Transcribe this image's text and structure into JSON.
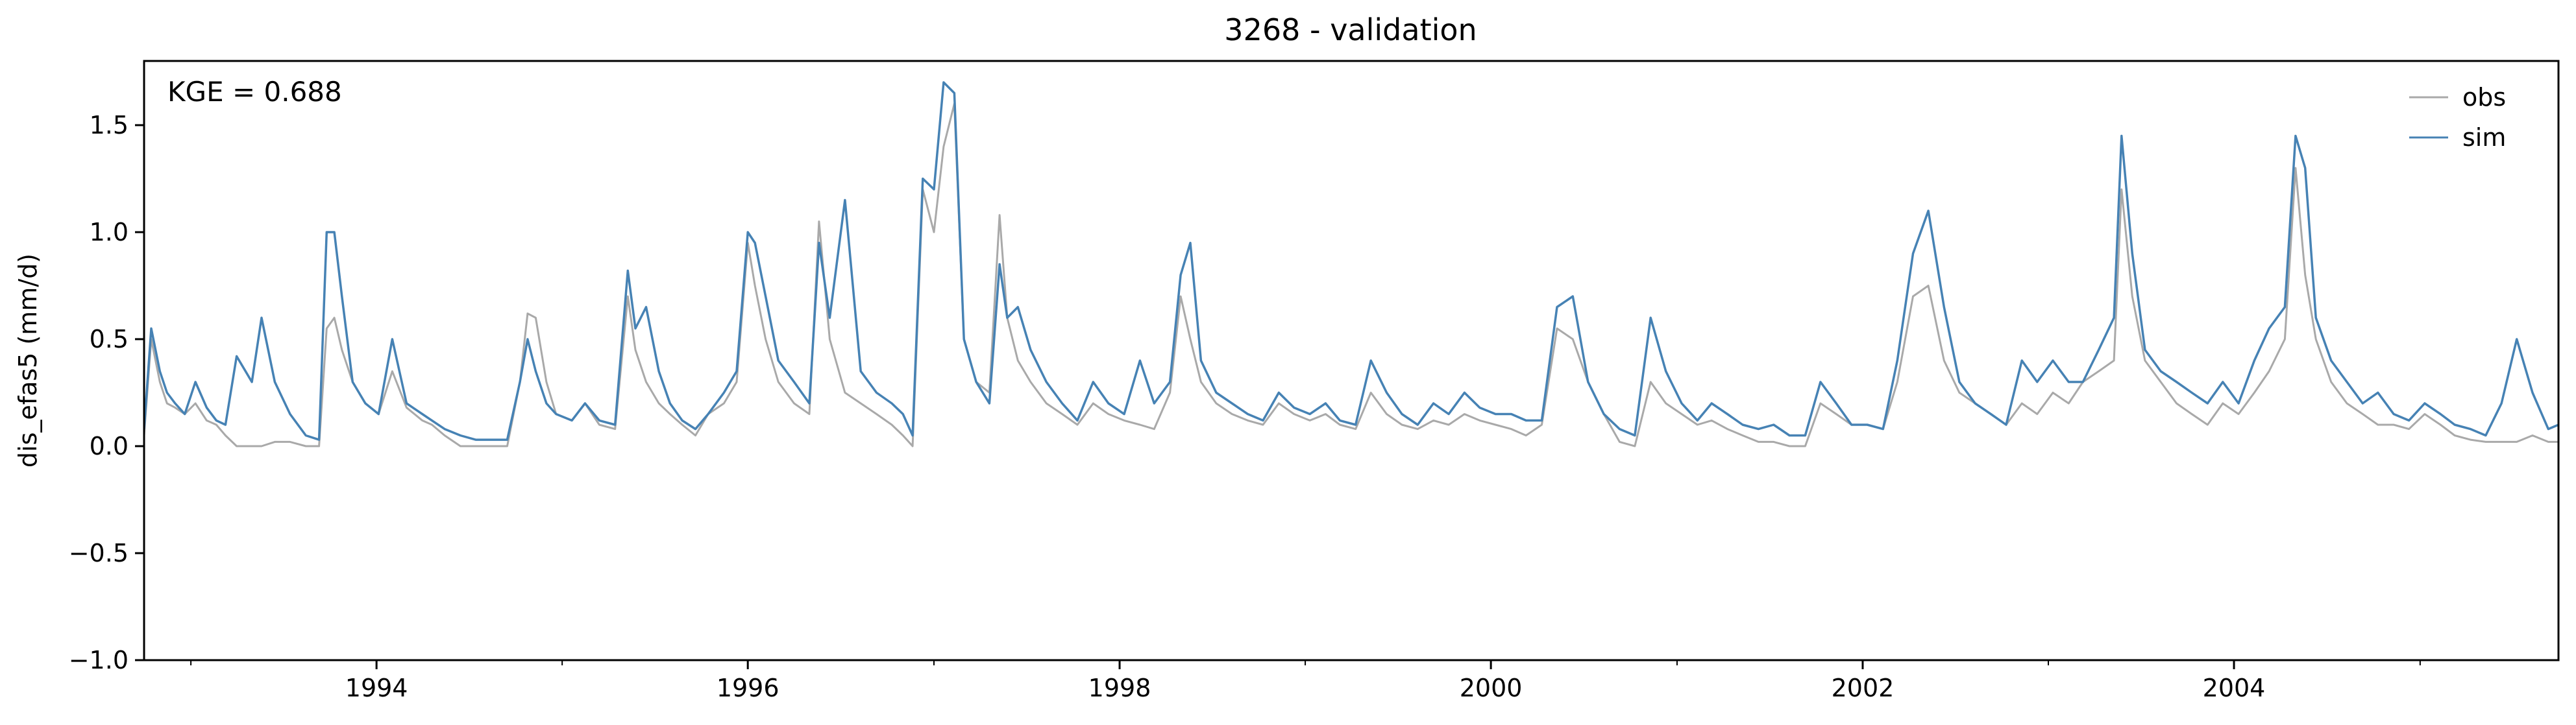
{
  "chart_data": {
    "type": "line",
    "title": "3268 - validation",
    "xlabel": "",
    "ylabel": "dis_efas5 (mm/d)",
    "annotation": "KGE = 0.688",
    "xlim": [
      "1992-10-01",
      "2005-09-30"
    ],
    "ylim": [
      -1.0,
      1.8
    ],
    "y_ticks": [
      -1.0,
      -0.5,
      0.0,
      0.5,
      1.0,
      1.5
    ],
    "y_tick_labels": [
      "−1.0",
      "−0.5",
      "0.0",
      "0.5",
      "1.0",
      "1.5"
    ],
    "x_ticks": [
      "1994-01-01",
      "1996-01-01",
      "1998-01-01",
      "2000-01-01",
      "2002-01-01",
      "2004-01-01"
    ],
    "x_tick_labels": [
      "1994",
      "1996",
      "1998",
      "2000",
      "2002",
      "2004"
    ],
    "x_minor_ticks": [
      "1993-01-01",
      "1995-01-01",
      "1997-01-01",
      "1999-01-01",
      "2001-01-01",
      "2003-01-01",
      "2005-01-01"
    ],
    "grid": false,
    "legend_position": "top-right",
    "series": [
      {
        "name": "obs",
        "color": "#a9a9a9",
        "x": [
          "1992-10-01",
          "1992-10-15",
          "1992-11-01",
          "1992-11-15",
          "1992-12-01",
          "1992-12-20",
          "1993-01-10",
          "1993-02-01",
          "1993-02-20",
          "1993-03-10",
          "1993-04-01",
          "1993-05-01",
          "1993-05-20",
          "1993-06-15",
          "1993-07-15",
          "1993-08-15",
          "1993-09-10",
          "1993-09-25",
          "1993-10-10",
          "1993-10-25",
          "1993-11-15",
          "1993-12-10",
          "1994-01-05",
          "1994-02-01",
          "1994-03-01",
          "1994-04-01",
          "1994-04-20",
          "1994-05-15",
          "1994-06-15",
          "1994-07-15",
          "1994-08-15",
          "1994-09-15",
          "1994-10-10",
          "1994-10-25",
          "1994-11-10",
          "1994-12-01",
          "1994-12-20",
          "1995-01-20",
          "1995-02-15",
          "1995-03-15",
          "1995-04-15",
          "1995-05-10",
          "1995-05-25",
          "1995-06-15",
          "1995-07-10",
          "1995-08-01",
          "1995-08-25",
          "1995-09-20",
          "1995-10-15",
          "1995-11-15",
          "1995-12-10",
          "1996-01-01",
          "1996-01-15",
          "1996-02-05",
          "1996-03-01",
          "1996-04-01",
          "1996-05-01",
          "1996-05-20",
          "1996-06-10",
          "1996-07-10",
          "1996-08-10",
          "1996-09-10",
          "1996-10-10",
          "1996-11-01",
          "1996-11-20",
          "1996-12-10",
          "1997-01-01",
          "1997-01-20",
          "1997-02-10",
          "1997-03-01",
          "1997-03-25",
          "1997-04-20",
          "1997-05-10",
          "1997-05-25",
          "1997-06-15",
          "1997-07-10",
          "1997-08-10",
          "1997-09-10",
          "1997-10-10",
          "1997-11-10",
          "1997-12-10",
          "1998-01-10",
          "1998-02-10",
          "1998-03-10",
          "1998-04-10",
          "1998-05-01",
          "1998-05-20",
          "1998-06-10",
          "1998-07-10",
          "1998-08-10",
          "1998-09-10",
          "1998-10-10",
          "1998-11-10",
          "1998-12-10",
          "1999-01-10",
          "1999-02-10",
          "1999-03-10",
          "1999-04-10",
          "1999-05-10",
          "1999-06-10",
          "1999-07-10",
          "1999-08-10",
          "1999-09-10",
          "1999-10-10",
          "1999-11-10",
          "1999-12-10",
          "2000-01-10",
          "2000-02-10",
          "2000-03-10",
          "2000-04-10",
          "2000-05-10",
          "2000-06-10",
          "2000-07-10",
          "2000-08-10",
          "2000-09-10",
          "2000-10-10",
          "2000-11-10",
          "2000-12-10",
          "2001-01-10",
          "2001-02-10",
          "2001-03-10",
          "2001-04-10",
          "2001-05-10",
          "2001-06-10",
          "2001-07-10",
          "2001-08-10",
          "2001-09-10",
          "2001-10-10",
          "2001-11-10",
          "2001-12-10",
          "2002-01-10",
          "2002-02-10",
          "2002-03-10",
          "2002-04-10",
          "2002-05-10",
          "2002-06-10",
          "2002-07-10",
          "2002-08-10",
          "2002-09-10",
          "2002-10-10",
          "2002-11-10",
          "2002-12-10",
          "2003-01-10",
          "2003-02-10",
          "2003-03-10",
          "2003-04-10",
          "2003-05-10",
          "2003-05-25",
          "2003-06-15",
          "2003-07-10",
          "2003-08-10",
          "2003-09-10",
          "2003-10-10",
          "2003-11-10",
          "2003-12-10",
          "2004-01-10",
          "2004-02-10",
          "2004-03-10",
          "2004-04-10",
          "2004-05-01",
          "2004-05-20",
          "2004-06-10",
          "2004-07-10",
          "2004-08-10",
          "2004-09-10",
          "2004-10-10",
          "2004-11-10",
          "2004-12-10",
          "2005-01-10",
          "2005-02-10",
          "2005-03-10",
          "2005-04-10",
          "2005-05-10",
          "2005-06-10",
          "2005-07-10",
          "2005-08-10",
          "2005-09-10",
          "2005-09-30"
        ],
        "y": [
          0.05,
          0.5,
          0.3,
          0.2,
          0.18,
          0.15,
          0.2,
          0.12,
          0.1,
          0.05,
          0.0,
          0.0,
          0.0,
          0.02,
          0.02,
          0.0,
          0.0,
          0.55,
          0.6,
          0.45,
          0.3,
          0.2,
          0.15,
          0.35,
          0.18,
          0.12,
          0.1,
          0.05,
          0.0,
          0.0,
          0.0,
          0.0,
          0.3,
          0.62,
          0.6,
          0.3,
          0.15,
          0.12,
          0.2,
          0.1,
          0.08,
          0.7,
          0.45,
          0.3,
          0.2,
          0.15,
          0.1,
          0.05,
          0.15,
          0.2,
          0.3,
          0.95,
          0.75,
          0.5,
          0.3,
          0.2,
          0.15,
          1.05,
          0.5,
          0.25,
          0.2,
          0.15,
          0.1,
          0.05,
          0.0,
          1.2,
          1.0,
          1.4,
          1.6,
          0.5,
          0.3,
          0.25,
          1.08,
          0.6,
          0.4,
          0.3,
          0.2,
          0.15,
          0.1,
          0.2,
          0.15,
          0.12,
          0.1,
          0.08,
          0.25,
          0.7,
          0.5,
          0.3,
          0.2,
          0.15,
          0.12,
          0.1,
          0.2,
          0.15,
          0.12,
          0.15,
          0.1,
          0.08,
          0.25,
          0.15,
          0.1,
          0.08,
          0.12,
          0.1,
          0.15,
          0.12,
          0.1,
          0.08,
          0.05,
          0.1,
          0.55,
          0.5,
          0.3,
          0.15,
          0.02,
          0.0,
          0.3,
          0.2,
          0.15,
          0.1,
          0.12,
          0.08,
          0.05,
          0.02,
          0.02,
          0.0,
          0.0,
          0.2,
          0.15,
          0.1,
          0.1,
          0.08,
          0.3,
          0.7,
          0.75,
          0.4,
          0.25,
          0.2,
          0.15,
          0.1,
          0.2,
          0.15,
          0.25,
          0.2,
          0.3,
          0.35,
          0.4,
          1.2,
          0.7,
          0.4,
          0.3,
          0.2,
          0.15,
          0.1,
          0.2,
          0.15,
          0.25,
          0.35,
          0.5,
          1.3,
          0.8,
          0.5,
          0.3,
          0.2,
          0.15,
          0.1,
          0.1,
          0.08,
          0.15,
          0.1,
          0.05,
          0.03,
          0.02,
          0.02,
          0.02,
          0.05,
          0.02,
          0.02
        ]
      },
      {
        "name": "sim",
        "color": "#4682b4",
        "x": [
          "1992-10-01",
          "1992-10-15",
          "1992-11-01",
          "1992-11-15",
          "1992-12-01",
          "1992-12-20",
          "1993-01-10",
          "1993-02-01",
          "1993-02-20",
          "1993-03-10",
          "1993-04-01",
          "1993-05-01",
          "1993-05-20",
          "1993-06-15",
          "1993-07-15",
          "1993-08-15",
          "1993-09-10",
          "1993-09-25",
          "1993-10-10",
          "1993-10-25",
          "1993-11-15",
          "1993-12-10",
          "1994-01-05",
          "1994-02-01",
          "1994-03-01",
          "1994-04-01",
          "1994-04-20",
          "1994-05-15",
          "1994-06-15",
          "1994-07-15",
          "1994-08-15",
          "1994-09-15",
          "1994-10-10",
          "1994-10-25",
          "1994-11-10",
          "1994-12-01",
          "1994-12-20",
          "1995-01-20",
          "1995-02-15",
          "1995-03-15",
          "1995-04-15",
          "1995-05-10",
          "1995-05-25",
          "1995-06-15",
          "1995-07-10",
          "1995-08-01",
          "1995-08-25",
          "1995-09-20",
          "1995-10-15",
          "1995-11-15",
          "1995-12-10",
          "1996-01-01",
          "1996-01-15",
          "1996-02-05",
          "1996-03-01",
          "1996-04-01",
          "1996-05-01",
          "1996-05-20",
          "1996-06-10",
          "1996-07-10",
          "1996-08-10",
          "1996-09-10",
          "1996-10-10",
          "1996-11-01",
          "1996-11-20",
          "1996-12-10",
          "1997-01-01",
          "1997-01-20",
          "1997-02-10",
          "1997-03-01",
          "1997-03-25",
          "1997-04-20",
          "1997-05-10",
          "1997-05-25",
          "1997-06-15",
          "1997-07-10",
          "1997-08-10",
          "1997-09-10",
          "1997-10-10",
          "1997-11-10",
          "1997-12-10",
          "1998-01-10",
          "1998-02-10",
          "1998-03-10",
          "1998-04-10",
          "1998-05-01",
          "1998-05-20",
          "1998-06-10",
          "1998-07-10",
          "1998-08-10",
          "1998-09-10",
          "1998-10-10",
          "1998-11-10",
          "1998-12-10",
          "1999-01-10",
          "1999-02-10",
          "1999-03-10",
          "1999-04-10",
          "1999-05-10",
          "1999-06-10",
          "1999-07-10",
          "1999-08-10",
          "1999-09-10",
          "1999-10-10",
          "1999-11-10",
          "1999-12-10",
          "2000-01-10",
          "2000-02-10",
          "2000-03-10",
          "2000-04-10",
          "2000-05-10",
          "2000-06-10",
          "2000-07-10",
          "2000-08-10",
          "2000-09-10",
          "2000-10-10",
          "2000-11-10",
          "2000-12-10",
          "2001-01-10",
          "2001-02-10",
          "2001-03-10",
          "2001-04-10",
          "2001-05-10",
          "2001-06-10",
          "2001-07-10",
          "2001-08-10",
          "2001-09-10",
          "2001-10-10",
          "2001-11-10",
          "2001-12-10",
          "2002-01-10",
          "2002-02-10",
          "2002-03-10",
          "2002-04-10",
          "2002-05-10",
          "2002-06-10",
          "2002-07-10",
          "2002-08-10",
          "2002-09-10",
          "2002-10-10",
          "2002-11-10",
          "2002-12-10",
          "2003-01-10",
          "2003-02-10",
          "2003-03-10",
          "2003-04-10",
          "2003-05-10",
          "2003-05-25",
          "2003-06-15",
          "2003-07-10",
          "2003-08-10",
          "2003-09-10",
          "2003-10-10",
          "2003-11-10",
          "2003-12-10",
          "2004-01-10",
          "2004-02-10",
          "2004-03-10",
          "2004-04-10",
          "2004-05-01",
          "2004-05-20",
          "2004-06-10",
          "2004-07-10",
          "2004-08-10",
          "2004-09-10",
          "2004-10-10",
          "2004-11-10",
          "2004-12-10",
          "2005-01-10",
          "2005-02-10",
          "2005-03-10",
          "2005-04-10",
          "2005-05-10",
          "2005-06-10",
          "2005-07-10",
          "2005-08-10",
          "2005-09-10",
          "2005-09-30"
        ],
        "y": [
          0.08,
          0.55,
          0.35,
          0.25,
          0.2,
          0.15,
          0.3,
          0.18,
          0.12,
          0.1,
          0.42,
          0.3,
          0.6,
          0.3,
          0.15,
          0.05,
          0.03,
          1.0,
          1.0,
          0.7,
          0.3,
          0.2,
          0.15,
          0.5,
          0.2,
          0.15,
          0.12,
          0.08,
          0.05,
          0.03,
          0.03,
          0.03,
          0.3,
          0.5,
          0.35,
          0.2,
          0.15,
          0.12,
          0.2,
          0.12,
          0.1,
          0.82,
          0.55,
          0.65,
          0.35,
          0.2,
          0.12,
          0.08,
          0.15,
          0.25,
          0.35,
          1.0,
          0.95,
          0.7,
          0.4,
          0.3,
          0.2,
          0.95,
          0.6,
          1.15,
          0.35,
          0.25,
          0.2,
          0.15,
          0.05,
          1.25,
          1.2,
          1.7,
          1.65,
          0.5,
          0.3,
          0.2,
          0.85,
          0.6,
          0.65,
          0.45,
          0.3,
          0.2,
          0.12,
          0.3,
          0.2,
          0.15,
          0.4,
          0.2,
          0.3,
          0.8,
          0.95,
          0.4,
          0.25,
          0.2,
          0.15,
          0.12,
          0.25,
          0.18,
          0.15,
          0.2,
          0.12,
          0.1,
          0.4,
          0.25,
          0.15,
          0.1,
          0.2,
          0.15,
          0.25,
          0.18,
          0.15,
          0.15,
          0.12,
          0.12,
          0.65,
          0.7,
          0.3,
          0.15,
          0.08,
          0.05,
          0.6,
          0.35,
          0.2,
          0.12,
          0.2,
          0.15,
          0.1,
          0.08,
          0.1,
          0.05,
          0.05,
          0.3,
          0.2,
          0.1,
          0.1,
          0.08,
          0.4,
          0.9,
          1.1,
          0.65,
          0.3,
          0.2,
          0.15,
          0.1,
          0.4,
          0.3,
          0.4,
          0.3,
          0.3,
          0.45,
          0.6,
          1.45,
          0.9,
          0.45,
          0.35,
          0.3,
          0.25,
          0.2,
          0.3,
          0.2,
          0.4,
          0.55,
          0.65,
          1.45,
          1.3,
          0.6,
          0.4,
          0.3,
          0.2,
          0.25,
          0.15,
          0.12,
          0.2,
          0.15,
          0.1,
          0.08,
          0.05,
          0.2,
          0.5,
          0.25,
          0.08,
          0.1
        ]
      }
    ]
  }
}
